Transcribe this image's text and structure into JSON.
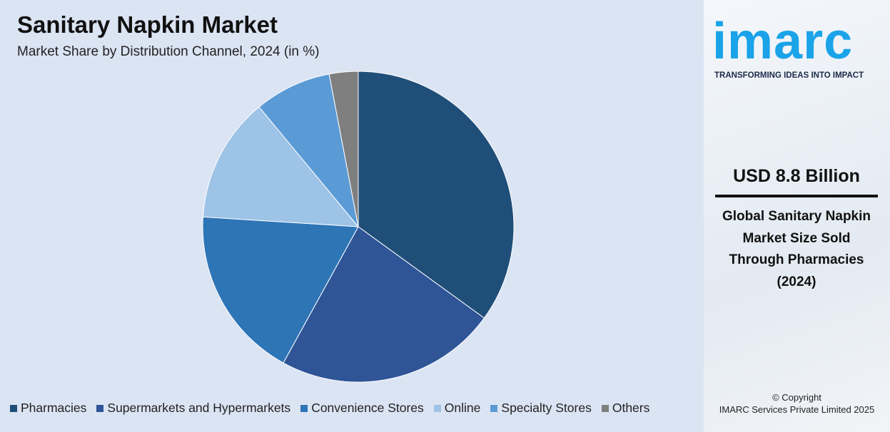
{
  "chart_data": {
    "type": "pie",
    "title": "Sanitary Napkin Market",
    "subtitle": "Market Share by Distribution Channel, 2024 (in %)",
    "categories": [
      "Pharmacies",
      "Supermarkets and Hypermarkets",
      "Convenience Stores",
      "Online",
      "Specialty Stores",
      "Others"
    ],
    "values": [
      35,
      23,
      18,
      13,
      8,
      3
    ],
    "colors": [
      "#1f4e79",
      "#2f5597",
      "#2e75b6",
      "#9dc3e6",
      "#5b9bd5",
      "#7f7f7f"
    ],
    "legend": "bottom"
  },
  "sidebar": {
    "logo": "imarc",
    "tagline": "TRANSFORMING IDEAS INTO IMPACT",
    "headline": "USD 8.8 Billion",
    "description": "Global Sanitary Napkin Market Size Sold Through Pharmacies (2024)",
    "copyright": [
      "© Copyright",
      "IMARC Services Private Limited 2025"
    ]
  }
}
